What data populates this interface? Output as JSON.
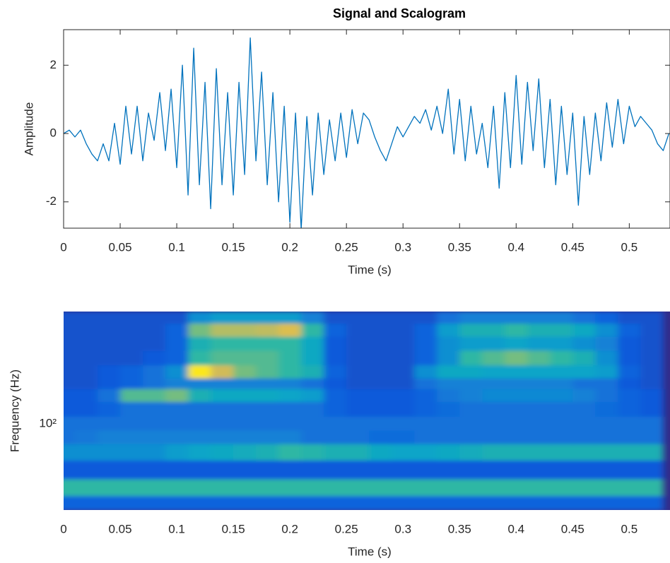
{
  "chart_data": [
    {
      "type": "line",
      "title": "Signal and Scalogram",
      "xlabel": "Time (s)",
      "ylabel": "Amplitude",
      "color": "#0072bd",
      "xlim": [
        0,
        0.536
      ],
      "ylim": [
        -2.77,
        3.04
      ],
      "xticks": [
        0,
        0.05,
        0.1,
        0.15,
        0.2,
        0.25,
        0.3,
        0.35,
        0.4,
        0.45,
        0.5
      ],
      "yticks": [
        -2,
        0,
        2
      ],
      "x": [
        0,
        0.005,
        0.01,
        0.015,
        0.02,
        0.025,
        0.03,
        0.035,
        0.04,
        0.045,
        0.05,
        0.055,
        0.06,
        0.065,
        0.07,
        0.075,
        0.08,
        0.085,
        0.09,
        0.095,
        0.1,
        0.105,
        0.11,
        0.115,
        0.12,
        0.125,
        0.13,
        0.135,
        0.14,
        0.145,
        0.15,
        0.155,
        0.16,
        0.165,
        0.17,
        0.175,
        0.18,
        0.185,
        0.19,
        0.195,
        0.2,
        0.205,
        0.21,
        0.215,
        0.22,
        0.225,
        0.23,
        0.235,
        0.24,
        0.245,
        0.25,
        0.255,
        0.26,
        0.265,
        0.27,
        0.275,
        0.28,
        0.285,
        0.29,
        0.295,
        0.3,
        0.305,
        0.31,
        0.315,
        0.32,
        0.325,
        0.33,
        0.335,
        0.34,
        0.345,
        0.35,
        0.355,
        0.36,
        0.365,
        0.37,
        0.375,
        0.38,
        0.385,
        0.39,
        0.395,
        0.4,
        0.405,
        0.41,
        0.415,
        0.42,
        0.425,
        0.43,
        0.435,
        0.44,
        0.445,
        0.45,
        0.455,
        0.46,
        0.465,
        0.47,
        0.475,
        0.48,
        0.485,
        0.49,
        0.495,
        0.5,
        0.505,
        0.51,
        0.515,
        0.52,
        0.525,
        0.53,
        0.535
      ],
      "values": [
        0,
        0.1,
        -0.1,
        0.1,
        -0.3,
        -0.6,
        -0.8,
        -0.3,
        -0.8,
        0.3,
        -0.9,
        0.8,
        -0.6,
        0.8,
        -0.8,
        0.6,
        -0.2,
        1.2,
        -0.5,
        1.3,
        -1.0,
        2.0,
        -1.8,
        2.5,
        -1.5,
        1.5,
        -2.2,
        1.9,
        -1.5,
        1.2,
        -1.8,
        1.5,
        -1.2,
        2.8,
        -0.8,
        1.8,
        -1.5,
        1.2,
        -2.0,
        0.8,
        -2.6,
        0.6,
        -2.8,
        0.5,
        -1.8,
        0.6,
        -1.2,
        0.4,
        -0.8,
        0.6,
        -0.7,
        0.7,
        -0.3,
        0.6,
        0.4,
        -0.1,
        -0.5,
        -0.8,
        -0.3,
        0.2,
        -0.1,
        0.2,
        0.5,
        0.3,
        0.7,
        0.1,
        0.8,
        0.0,
        1.3,
        -0.6,
        1.0,
        -0.8,
        0.8,
        -0.6,
        0.3,
        -1.0,
        0.8,
        -1.6,
        1.2,
        -1.0,
        1.7,
        -0.9,
        1.5,
        -0.5,
        1.6,
        -1.0,
        1.0,
        -1.5,
        0.8,
        -1.2,
        0.6,
        -2.1,
        0.5,
        -1.2,
        0.6,
        -0.8,
        0.9,
        -0.4,
        1.0,
        -0.3,
        0.8,
        0.2,
        0.5,
        0.3,
        0.1,
        -0.3,
        -0.5,
        0.0
      ]
    },
    {
      "type": "heatmap",
      "xlabel": "Time (s)",
      "ylabel": "Frequency (Hz)",
      "yscale": "log",
      "xlim": [
        0,
        0.536
      ],
      "ylim": [
        22,
        720
      ],
      "xticks": [
        0,
        0.05,
        0.1,
        0.15,
        0.2,
        0.25,
        0.3,
        0.35,
        0.4,
        0.45,
        0.5
      ],
      "yticks": [
        {
          "value": 100,
          "label": "10²"
        }
      ],
      "zlim": [
        0,
        1
      ],
      "colormap": [
        "#352a87",
        "#0f5cdd",
        "#1481d6",
        "#06a4ca",
        "#2eb7a4",
        "#87bf77",
        "#d1bb59",
        "#fec832",
        "#f9fb0e"
      ],
      "x": [
        0,
        0.02,
        0.04,
        0.06,
        0.08,
        0.1,
        0.12,
        0.14,
        0.16,
        0.18,
        0.2,
        0.22,
        0.24,
        0.26,
        0.28,
        0.3,
        0.32,
        0.34,
        0.36,
        0.38,
        0.4,
        0.42,
        0.44,
        0.46,
        0.48,
        0.5,
        0.52
      ],
      "y": [
        25,
        32,
        45,
        62,
        80,
        100,
        130,
        168,
        205,
        244,
        325,
        406,
        533,
        643
      ],
      "z": [
        [
          0.15,
          0.15,
          0.15,
          0.15,
          0.15,
          0.15,
          0.15,
          0.15,
          0.15,
          0.15,
          0.15,
          0.15,
          0.15,
          0.15,
          0.15,
          0.15,
          0.15,
          0.15,
          0.15,
          0.15,
          0.15,
          0.15,
          0.15,
          0.15,
          0.15,
          0.15,
          0.15
        ],
        [
          0.5,
          0.5,
          0.5,
          0.5,
          0.5,
          0.5,
          0.5,
          0.5,
          0.5,
          0.5,
          0.5,
          0.5,
          0.5,
          0.5,
          0.5,
          0.5,
          0.5,
          0.5,
          0.5,
          0.5,
          0.5,
          0.5,
          0.5,
          0.5,
          0.5,
          0.5,
          0.5
        ],
        [
          0.12,
          0.12,
          0.12,
          0.12,
          0.12,
          0.12,
          0.12,
          0.12,
          0.12,
          0.12,
          0.12,
          0.12,
          0.12,
          0.12,
          0.12,
          0.12,
          0.12,
          0.12,
          0.12,
          0.12,
          0.12,
          0.12,
          0.12,
          0.12,
          0.12,
          0.12,
          0.12
        ],
        [
          0.3,
          0.3,
          0.3,
          0.3,
          0.3,
          0.35,
          0.38,
          0.4,
          0.42,
          0.45,
          0.5,
          0.48,
          0.45,
          0.45,
          0.4,
          0.38,
          0.38,
          0.4,
          0.42,
          0.45,
          0.45,
          0.45,
          0.45,
          0.45,
          0.45,
          0.45,
          0.45
        ],
        [
          0.2,
          0.22,
          0.25,
          0.25,
          0.25,
          0.25,
          0.25,
          0.25,
          0.25,
          0.25,
          0.25,
          0.2,
          0.2,
          0.2,
          0.18,
          0.18,
          0.2,
          0.2,
          0.2,
          0.2,
          0.2,
          0.2,
          0.2,
          0.2,
          0.2,
          0.2,
          0.2
        ],
        [
          0.2,
          0.2,
          0.2,
          0.2,
          0.2,
          0.2,
          0.2,
          0.2,
          0.2,
          0.2,
          0.2,
          0.2,
          0.2,
          0.2,
          0.2,
          0.2,
          0.2,
          0.2,
          0.2,
          0.2,
          0.2,
          0.2,
          0.2,
          0.2,
          0.2,
          0.2,
          0.2
        ],
        [
          0.12,
          0.12,
          0.15,
          0.2,
          0.2,
          0.2,
          0.2,
          0.2,
          0.2,
          0.2,
          0.2,
          0.2,
          0.15,
          0.12,
          0.12,
          0.12,
          0.15,
          0.18,
          0.2,
          0.2,
          0.2,
          0.2,
          0.2,
          0.2,
          0.18,
          0.15,
          0.12
        ],
        [
          0.12,
          0.12,
          0.2,
          0.55,
          0.55,
          0.6,
          0.45,
          0.4,
          0.4,
          0.4,
          0.38,
          0.35,
          0.15,
          0.12,
          0.12,
          0.12,
          0.15,
          0.22,
          0.25,
          0.28,
          0.28,
          0.28,
          0.28,
          0.25,
          0.2,
          0.15,
          0.12
        ],
        [
          0.1,
          0.1,
          0.12,
          0.15,
          0.2,
          0.25,
          0.25,
          0.25,
          0.25,
          0.25,
          0.25,
          0.2,
          0.12,
          0.1,
          0.1,
          0.1,
          0.2,
          0.25,
          0.25,
          0.25,
          0.25,
          0.25,
          0.25,
          0.2,
          0.2,
          0.12,
          0.1
        ],
        [
          0.1,
          0.1,
          0.12,
          0.15,
          0.2,
          0.3,
          0.95,
          0.75,
          0.6,
          0.55,
          0.5,
          0.45,
          0.15,
          0.1,
          0.1,
          0.1,
          0.3,
          0.4,
          0.4,
          0.38,
          0.38,
          0.38,
          0.38,
          0.38,
          0.35,
          0.15,
          0.1
        ],
        [
          0.1,
          0.1,
          0.1,
          0.1,
          0.12,
          0.15,
          0.5,
          0.55,
          0.55,
          0.55,
          0.5,
          0.4,
          0.12,
          0.1,
          0.1,
          0.1,
          0.15,
          0.3,
          0.5,
          0.55,
          0.6,
          0.55,
          0.5,
          0.45,
          0.3,
          0.12,
          0.1
        ],
        [
          0.1,
          0.1,
          0.1,
          0.1,
          0.1,
          0.15,
          0.45,
          0.5,
          0.5,
          0.5,
          0.5,
          0.4,
          0.12,
          0.1,
          0.1,
          0.1,
          0.15,
          0.3,
          0.35,
          0.35,
          0.38,
          0.35,
          0.35,
          0.3,
          0.25,
          0.12,
          0.1
        ],
        [
          0.1,
          0.1,
          0.1,
          0.1,
          0.1,
          0.15,
          0.6,
          0.7,
          0.7,
          0.72,
          0.78,
          0.5,
          0.15,
          0.1,
          0.1,
          0.1,
          0.15,
          0.35,
          0.45,
          0.45,
          0.5,
          0.45,
          0.45,
          0.4,
          0.3,
          0.15,
          0.1
        ],
        [
          0.1,
          0.1,
          0.1,
          0.1,
          0.1,
          0.1,
          0.3,
          0.35,
          0.35,
          0.35,
          0.35,
          0.25,
          0.1,
          0.1,
          0.1,
          0.1,
          0.1,
          0.2,
          0.25,
          0.25,
          0.25,
          0.25,
          0.25,
          0.2,
          0.15,
          0.1,
          0.1
        ]
      ]
    }
  ]
}
